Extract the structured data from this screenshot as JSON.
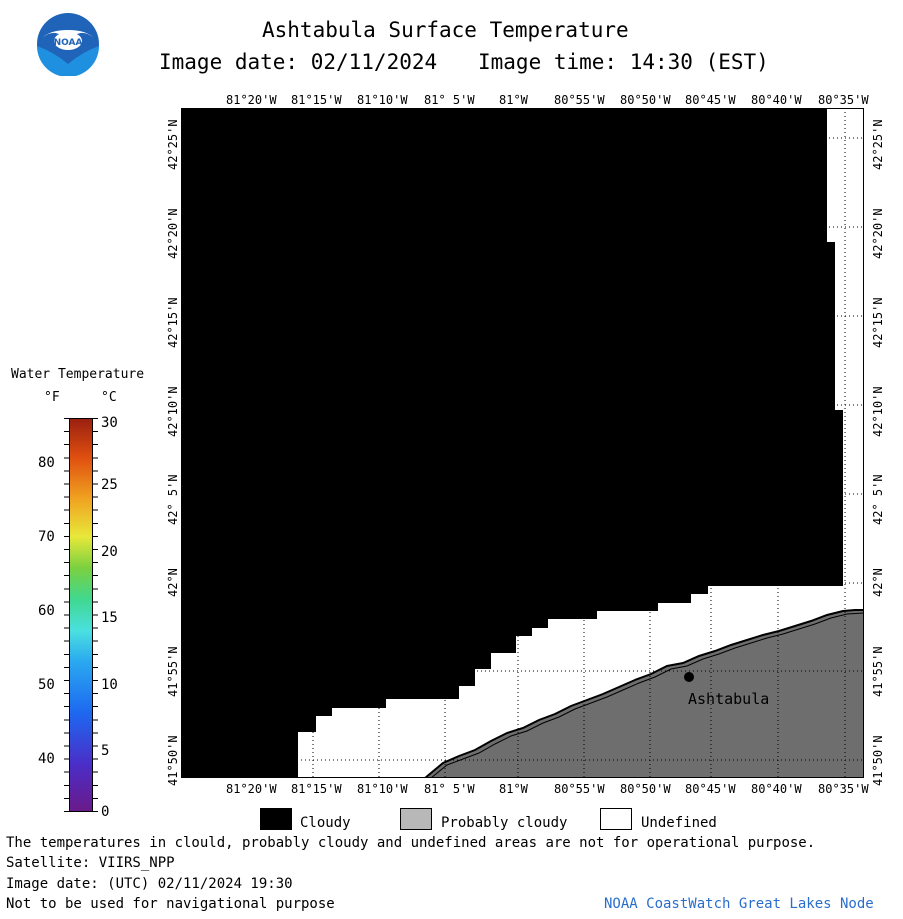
{
  "header": {
    "title": "Ashtabula Surface Temperature",
    "image_date": "Image date: 02/11/2024",
    "image_time": "Image time: 14:30 (EST)"
  },
  "legend": {
    "title": "Water Temperature",
    "unit_f": "°F",
    "unit_c": "°C",
    "f_ticks": [
      "80",
      "70",
      "60",
      "50",
      "40"
    ],
    "c_ticks": [
      "30",
      "25",
      "20",
      "15",
      "10",
      "5",
      "0"
    ]
  },
  "map": {
    "lon_labels": [
      "81°20'W",
      "81°15'W",
      "81°10'W",
      "81° 5'W",
      "81°W",
      "80°55'W",
      "80°50'W",
      "80°45'W",
      "80°40'W",
      "80°35'W"
    ],
    "lat_labels": [
      "42°25'N",
      "42°20'N",
      "42°15'N",
      "42°10'N",
      "42° 5'N",
      "42°N",
      "41°55'N",
      "41°50'N"
    ],
    "city": "Ashtabula",
    "colors": {
      "cloudy": "#000000",
      "probably_cloudy": "#6e6e6e",
      "undefined": "#ffffff"
    }
  },
  "key": {
    "cloudy": "Cloudy",
    "probably_cloudy": "Probably cloudy",
    "undefined": "Undefined"
  },
  "footer": {
    "line1": "The temperatures in clould, probably cloudy and undefined areas are not for operational purpose.",
    "line2": "Satellite: VIIRS_NPP",
    "line3": "Image date: (UTC) 02/11/2024  19:30",
    "line4": "Not to be used for navigational purpose",
    "credit": "NOAA CoastWatch Great Lakes Node"
  }
}
